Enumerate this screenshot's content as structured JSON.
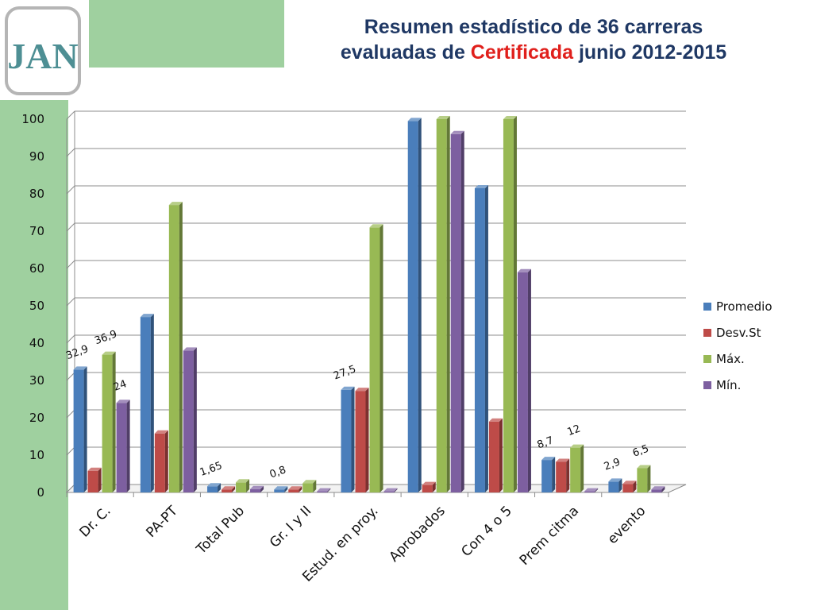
{
  "title": {
    "line1": "Resumen estadístico de 36 carreras",
    "line2_pre": "evaluadas de ",
    "line2_accent": "Certificada",
    "line2_post": " junio 2012-2015"
  },
  "colors": {
    "panel_green": "#9fd09f",
    "title_blue": "#1f3864",
    "accent_red": "#e0201c",
    "logo_teal": "#4e8f94"
  },
  "logo_text": "JAN",
  "chart_data": {
    "type": "bar",
    "categories": [
      "Dr. C.",
      "PA-PT",
      "Total Pub",
      "Gr. I y II",
      "Estud. en proy.",
      "Aprobados",
      "Con 4 o 5",
      "Prem citma",
      "evento"
    ],
    "series": [
      {
        "name": "Promedio",
        "color": "#4a7ebb",
        "values": [
          32.9,
          47,
          1.65,
          0.8,
          27.5,
          99.5,
          81.5,
          8.7,
          2.9
        ]
      },
      {
        "name": "Desv.St",
        "color": "#be4b48",
        "values": [
          5.8,
          15.8,
          0.8,
          0.8,
          27.2,
          2,
          19,
          8.2,
          2.3
        ]
      },
      {
        "name": "Máx.",
        "color": "#98b954",
        "values": [
          36.9,
          77,
          2.7,
          2.5,
          71,
          100,
          100,
          12,
          6.5
        ]
      },
      {
        "name": "Mín.",
        "color": "#7d5fa0",
        "values": [
          24,
          38,
          0.9,
          0.3,
          0.3,
          96,
          59,
          0.3,
          0.8
        ]
      }
    ],
    "data_labels": [
      {
        "category": 0,
        "series": 0,
        "text": "32,9"
      },
      {
        "category": 0,
        "series": 2,
        "text": "36,9"
      },
      {
        "category": 0,
        "series": 3,
        "text": "24"
      },
      {
        "category": 2,
        "series": 0,
        "text": "1,65"
      },
      {
        "category": 3,
        "series": 0,
        "text": "0,8"
      },
      {
        "category": 4,
        "series": 0,
        "text": "27,5"
      },
      {
        "category": 7,
        "series": 0,
        "text": "8,7"
      },
      {
        "category": 7,
        "series": 2,
        "text": "12"
      },
      {
        "category": 8,
        "series": 0,
        "text": "2,9"
      },
      {
        "category": 8,
        "series": 2,
        "text": "6,5"
      }
    ],
    "yticks": [
      "0",
      "10",
      "20",
      "30",
      "40",
      "50",
      "60",
      "70",
      "80",
      "90",
      "100"
    ],
    "ylim": [
      0,
      100
    ],
    "grid": true,
    "legend_position": "right",
    "title": "",
    "xlabel": "",
    "ylabel": ""
  }
}
